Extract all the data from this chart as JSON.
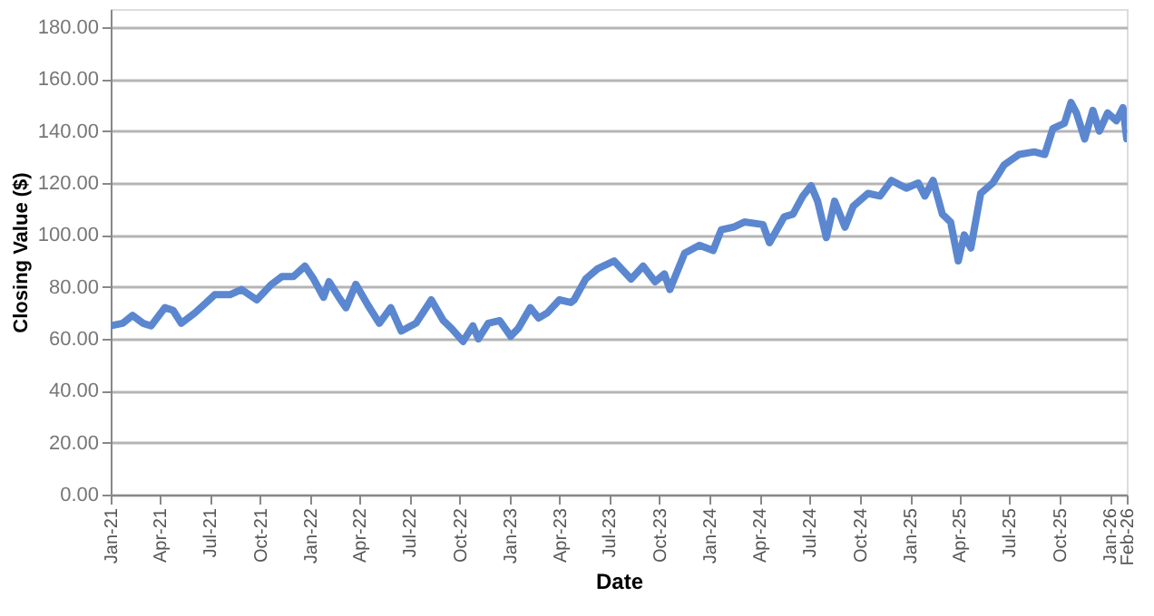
{
  "chart_data": {
    "type": "line",
    "xlabel": "Date",
    "ylabel": "Closing Value ($)",
    "grid": "y",
    "line_style": "solid",
    "marker": "none",
    "xlim": [
      "2021-01-01",
      "2026-02-01"
    ],
    "ylim": [
      0,
      187
    ],
    "yticks": [
      {
        "value": 0,
        "label": "0.00"
      },
      {
        "value": 20,
        "label": "20.00"
      },
      {
        "value": 40,
        "label": "40.00"
      },
      {
        "value": 60,
        "label": "60.00"
      },
      {
        "value": 80,
        "label": "80.00"
      },
      {
        "value": 100,
        "label": "100.00"
      },
      {
        "value": 120,
        "label": "120.00"
      },
      {
        "value": 140,
        "label": "140.00"
      },
      {
        "value": 160,
        "label": "160.00"
      },
      {
        "value": 180,
        "label": "180.00"
      }
    ],
    "xticks": [
      {
        "value": "2021-01-01",
        "label": "Jan-21"
      },
      {
        "value": "2021-04-01",
        "label": "Apr-21"
      },
      {
        "value": "2021-07-01",
        "label": "Jul-21"
      },
      {
        "value": "2021-10-01",
        "label": "Oct-21"
      },
      {
        "value": "2022-01-01",
        "label": "Jan-22"
      },
      {
        "value": "2022-04-01",
        "label": "Apr-22"
      },
      {
        "value": "2022-07-01",
        "label": "Jul-22"
      },
      {
        "value": "2022-10-01",
        "label": "Oct-22"
      },
      {
        "value": "2023-01-01",
        "label": "Jan-23"
      },
      {
        "value": "2023-04-01",
        "label": "Apr-23"
      },
      {
        "value": "2023-07-01",
        "label": "Jul-23"
      },
      {
        "value": "2023-10-01",
        "label": "Oct-23"
      },
      {
        "value": "2024-01-01",
        "label": "Jan-24"
      },
      {
        "value": "2024-04-01",
        "label": "Apr-24"
      },
      {
        "value": "2024-07-01",
        "label": "Jul-24"
      },
      {
        "value": "2024-10-01",
        "label": "Oct-24"
      },
      {
        "value": "2025-01-01",
        "label": "Jan-25"
      },
      {
        "value": "2025-04-01",
        "label": "Apr-25"
      },
      {
        "value": "2025-07-01",
        "label": "Jul-25"
      },
      {
        "value": "2025-10-01",
        "label": "Oct-25"
      },
      {
        "value": "2026-01-01",
        "label": "Jan-26"
      },
      {
        "value": "2026-02-01",
        "label": "Feb-26"
      }
    ],
    "x": [
      "2021-01-01",
      "2021-01-23",
      "2021-02-10",
      "2021-03-01",
      "2021-03-16",
      "2021-04-10",
      "2021-04-25",
      "2021-05-10",
      "2021-06-04",
      "2021-06-25",
      "2021-07-10",
      "2021-08-07",
      "2021-08-28",
      "2021-09-25",
      "2021-10-22",
      "2021-11-10",
      "2021-12-01",
      "2021-12-22",
      "2022-01-07",
      "2022-01-25",
      "2022-02-04",
      "2022-02-22",
      "2022-03-07",
      "2022-03-25",
      "2022-04-16",
      "2022-05-07",
      "2022-05-28",
      "2022-06-16",
      "2022-07-13",
      "2022-08-10",
      "2022-09-01",
      "2022-09-16",
      "2022-10-07",
      "2022-10-25",
      "2022-11-04",
      "2022-11-22",
      "2022-12-13",
      "2023-01-02",
      "2023-01-16",
      "2023-02-07",
      "2023-02-22",
      "2023-03-10",
      "2023-04-01",
      "2023-04-22",
      "2023-04-28",
      "2023-05-19",
      "2023-06-10",
      "2023-07-10",
      "2023-08-10",
      "2023-09-01",
      "2023-09-23",
      "2023-10-10",
      "2023-10-20",
      "2023-11-16",
      "2023-12-13",
      "2024-01-07",
      "2024-01-22",
      "2024-02-13",
      "2024-03-04",
      "2024-04-07",
      "2024-04-19",
      "2024-05-16",
      "2024-06-01",
      "2024-06-19",
      "2024-07-04",
      "2024-07-16",
      "2024-08-01",
      "2024-08-16",
      "2024-09-04",
      "2024-09-19",
      "2024-10-16",
      "2024-11-07",
      "2024-11-28",
      "2024-12-25",
      "2025-01-16",
      "2025-01-28",
      "2025-02-12",
      "2025-03-01",
      "2025-03-16",
      "2025-03-30",
      "2025-04-10",
      "2025-04-22",
      "2025-05-10",
      "2025-06-01",
      "2025-06-22",
      "2025-07-19",
      "2025-08-16",
      "2025-09-04",
      "2025-09-19",
      "2025-10-10",
      "2025-10-22",
      "2025-11-01",
      "2025-11-16",
      "2025-12-01",
      "2025-12-13",
      "2025-12-28",
      "2026-01-13",
      "2026-01-25",
      "2026-02-01"
    ],
    "series": [
      {
        "color": "#5b87d0",
        "values": [
          65,
          66,
          69,
          66,
          65,
          72,
          71,
          66,
          70,
          74,
          77,
          77,
          79,
          75,
          81,
          84,
          84,
          88,
          83,
          76,
          82,
          76,
          72,
          81,
          73,
          66,
          72,
          63,
          66,
          75,
          67,
          64,
          59,
          65,
          60,
          66,
          67,
          61,
          64,
          72,
          68,
          70,
          75,
          74,
          75,
          83,
          87,
          90,
          83,
          88,
          82,
          85,
          79,
          93,
          96,
          94,
          102,
          103,
          105,
          104,
          97,
          107,
          108,
          115,
          119,
          113,
          99,
          113,
          103,
          111,
          116,
          115,
          121,
          118,
          120,
          115,
          121,
          108,
          105,
          90,
          100,
          95,
          116,
          120,
          127,
          131,
          132,
          131,
          141,
          143,
          151,
          147,
          137,
          148,
          140,
          147,
          144,
          149,
          137
        ]
      }
    ]
  }
}
